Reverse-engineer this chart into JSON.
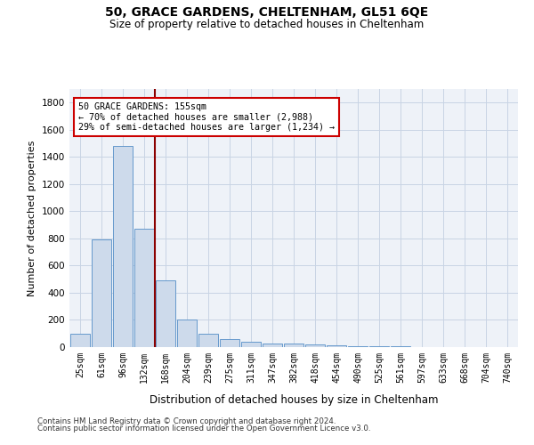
{
  "title1": "50, GRACE GARDENS, CHELTENHAM, GL51 6QE",
  "title2": "Size of property relative to detached houses in Cheltenham",
  "xlabel": "Distribution of detached houses by size in Cheltenham",
  "ylabel": "Number of detached properties",
  "categories": [
    "25sqm",
    "61sqm",
    "96sqm",
    "132sqm",
    "168sqm",
    "204sqm",
    "239sqm",
    "275sqm",
    "311sqm",
    "347sqm",
    "382sqm",
    "418sqm",
    "454sqm",
    "490sqm",
    "525sqm",
    "561sqm",
    "597sqm",
    "633sqm",
    "668sqm",
    "704sqm",
    "740sqm"
  ],
  "values": [
    100,
    790,
    1480,
    870,
    490,
    200,
    100,
    60,
    40,
    28,
    25,
    18,
    12,
    8,
    5,
    4,
    3,
    3,
    2,
    2,
    2
  ],
  "bar_color": "#cddaeb",
  "bar_edge_color": "#6699cc",
  "grid_color": "#c8d4e4",
  "vline_color": "#8b0000",
  "annotation_text": "50 GRACE GARDENS: 155sqm\n← 70% of detached houses are smaller (2,988)\n29% of semi-detached houses are larger (1,234) →",
  "annotation_box_color": "#cc0000",
  "ylim": [
    0,
    1900
  ],
  "yticks": [
    0,
    200,
    400,
    600,
    800,
    1000,
    1200,
    1400,
    1600,
    1800
  ],
  "footer1": "Contains HM Land Registry data © Crown copyright and database right 2024.",
  "footer2": "Contains public sector information licensed under the Open Government Licence v3.0.",
  "fig_width": 6.0,
  "fig_height": 5.0,
  "plot_bg_color": "#eef2f8"
}
